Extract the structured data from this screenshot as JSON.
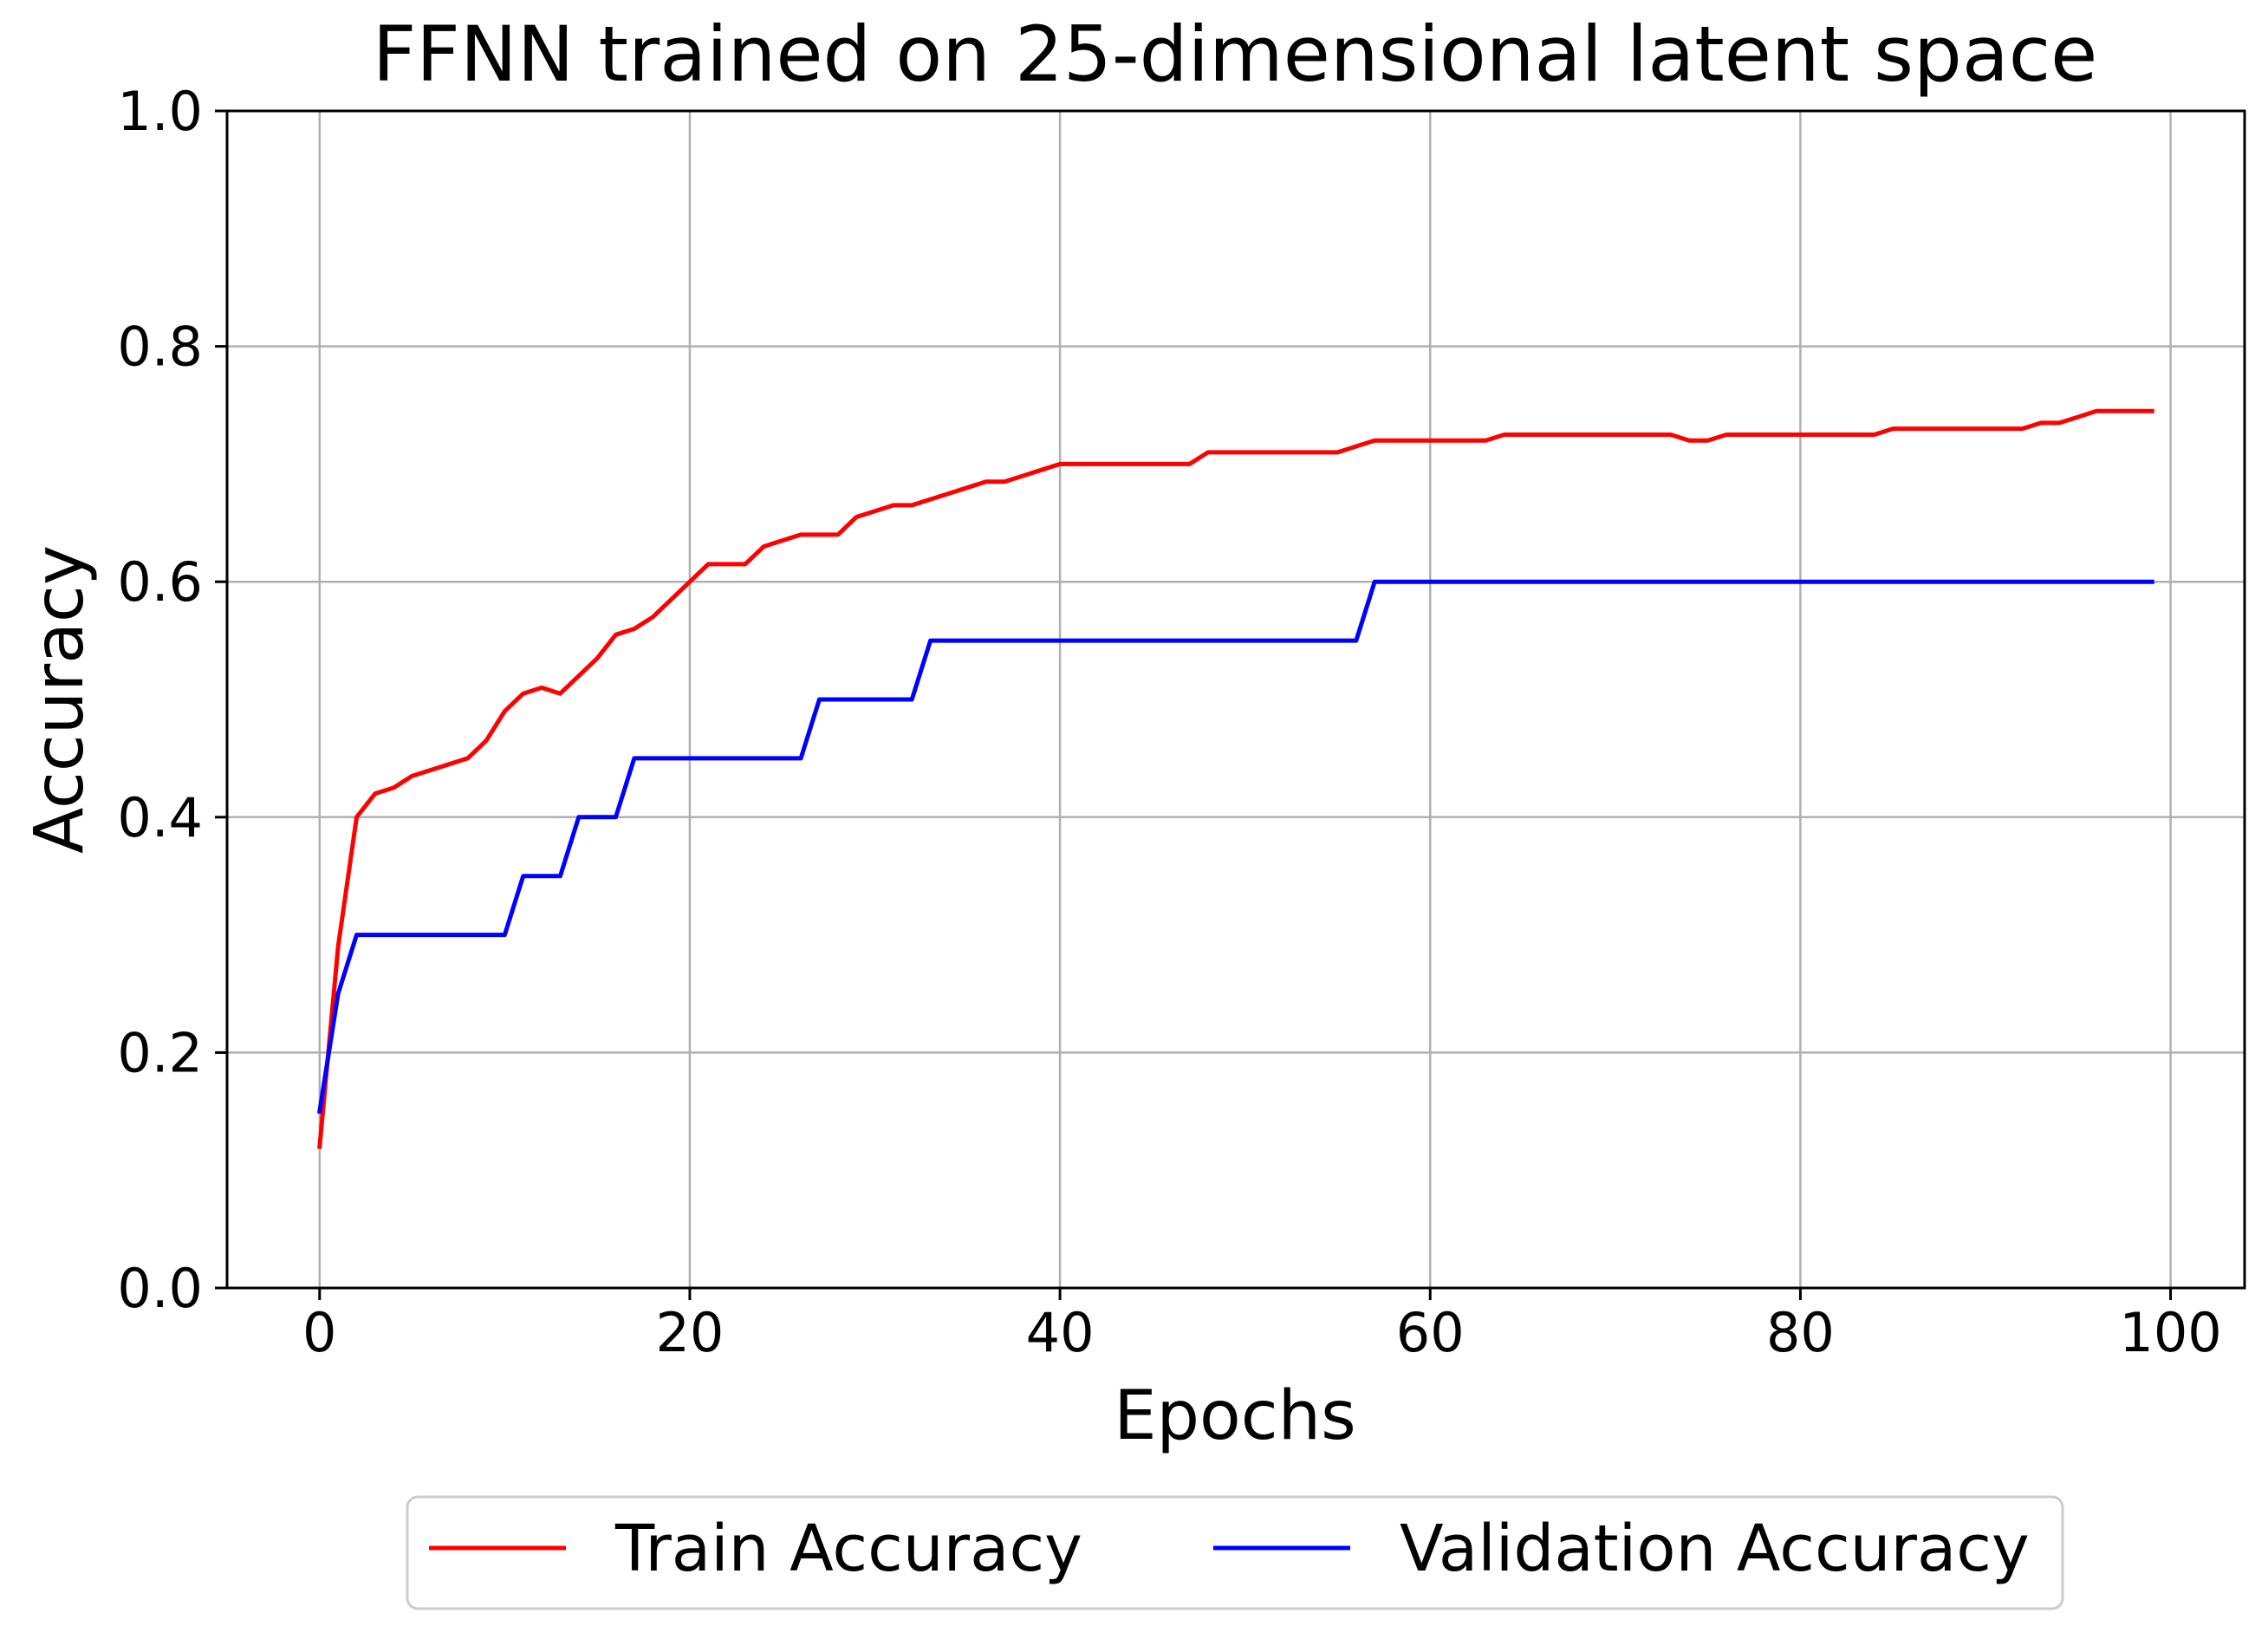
{
  "chart_data": {
    "type": "line",
    "title": "FFNN trained on 25-dimensional latent space",
    "xlabel": "Epochs",
    "ylabel": "Accuracy",
    "xlim": [
      -5,
      104
    ],
    "ylim": [
      0,
      1.0
    ],
    "xticks": [
      0,
      20,
      40,
      60,
      80,
      100
    ],
    "xtick_labels": [
      "0",
      "20",
      "40",
      "60",
      "80",
      "100"
    ],
    "yticks": [
      0,
      0.2,
      0.4,
      0.6,
      0.8,
      1.0
    ],
    "ytick_labels": [
      "0.0",
      "0.2",
      "0.4",
      "0.6",
      "0.8",
      "1.0"
    ],
    "grid": true,
    "legend_position": "bottom-center",
    "x": [
      0,
      1,
      2,
      3,
      4,
      5,
      6,
      7,
      8,
      9,
      10,
      11,
      12,
      13,
      14,
      15,
      16,
      17,
      18,
      19,
      20,
      21,
      22,
      23,
      24,
      25,
      26,
      27,
      28,
      29,
      30,
      31,
      32,
      33,
      34,
      35,
      36,
      37,
      38,
      39,
      40,
      41,
      42,
      43,
      44,
      45,
      46,
      47,
      48,
      49,
      50,
      51,
      52,
      53,
      54,
      55,
      56,
      57,
      58,
      59,
      60,
      61,
      62,
      63,
      64,
      65,
      66,
      67,
      68,
      69,
      70,
      71,
      72,
      73,
      74,
      75,
      76,
      77,
      78,
      79,
      80,
      81,
      82,
      83,
      84,
      85,
      86,
      87,
      88,
      89,
      90,
      91,
      92,
      93,
      94,
      95,
      96,
      97,
      98,
      99
    ],
    "series": [
      {
        "name": "Train Accuracy",
        "color": "#ff0000",
        "values": [
          0.12,
          0.29,
          0.4,
          0.42,
          0.425,
          0.435,
          0.44,
          0.445,
          0.45,
          0.465,
          0.49,
          0.505,
          0.51,
          0.505,
          0.52,
          0.535,
          0.555,
          0.56,
          0.57,
          0.585,
          0.6,
          0.615,
          0.615,
          0.615,
          0.63,
          0.635,
          0.64,
          0.64,
          0.64,
          0.655,
          0.66,
          0.665,
          0.665,
          0.67,
          0.675,
          0.68,
          0.685,
          0.685,
          0.69,
          0.695,
          0.7,
          0.7,
          0.7,
          0.7,
          0.7,
          0.7,
          0.7,
          0.7,
          0.71,
          0.71,
          0.71,
          0.71,
          0.71,
          0.71,
          0.71,
          0.71,
          0.715,
          0.72,
          0.72,
          0.72,
          0.72,
          0.72,
          0.72,
          0.72,
          0.725,
          0.725,
          0.725,
          0.725,
          0.725,
          0.725,
          0.725,
          0.725,
          0.725,
          0.725,
          0.72,
          0.72,
          0.725,
          0.725,
          0.725,
          0.725,
          0.725,
          0.725,
          0.725,
          0.725,
          0.725,
          0.73,
          0.73,
          0.73,
          0.73,
          0.73,
          0.73,
          0.73,
          0.73,
          0.735,
          0.735,
          0.74,
          0.745,
          0.745,
          0.745,
          0.745
        ]
      },
      {
        "name": "Validation Accuracy",
        "color": "#0000ff",
        "values": [
          0.15,
          0.25,
          0.3,
          0.3,
          0.3,
          0.3,
          0.3,
          0.3,
          0.3,
          0.3,
          0.3,
          0.35,
          0.35,
          0.35,
          0.4,
          0.4,
          0.4,
          0.45,
          0.45,
          0.45,
          0.45,
          0.45,
          0.45,
          0.45,
          0.45,
          0.45,
          0.45,
          0.5,
          0.5,
          0.5,
          0.5,
          0.5,
          0.5,
          0.55,
          0.55,
          0.55,
          0.55,
          0.55,
          0.55,
          0.55,
          0.55,
          0.55,
          0.55,
          0.55,
          0.55,
          0.55,
          0.55,
          0.55,
          0.55,
          0.55,
          0.55,
          0.55,
          0.55,
          0.55,
          0.55,
          0.55,
          0.55,
          0.6,
          0.6,
          0.6,
          0.6,
          0.6,
          0.6,
          0.6,
          0.6,
          0.6,
          0.6,
          0.6,
          0.6,
          0.6,
          0.6,
          0.6,
          0.6,
          0.6,
          0.6,
          0.6,
          0.6,
          0.6,
          0.6,
          0.6,
          0.6,
          0.6,
          0.6,
          0.6,
          0.6,
          0.6,
          0.6,
          0.6,
          0.6,
          0.6,
          0.6,
          0.6,
          0.6,
          0.6,
          0.6,
          0.6,
          0.6,
          0.6,
          0.6,
          0.6
        ]
      }
    ]
  }
}
